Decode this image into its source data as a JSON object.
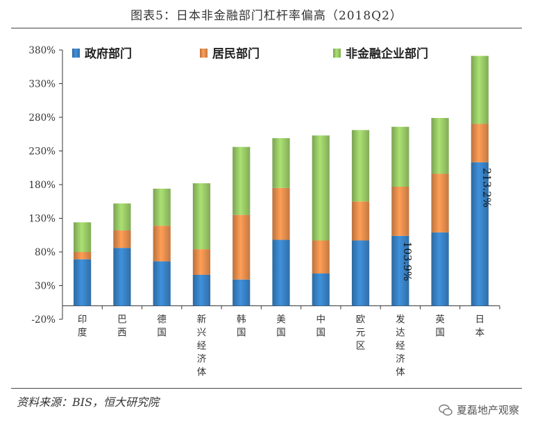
{
  "title": "图表5：日本非金融部门杠杆率偏高（2018Q2）",
  "source": "资料来源：BIS，恒大研究院",
  "watermark": "夏磊地产观察",
  "colors": {
    "gov": "#3a86cc",
    "household": "#ed9250",
    "corp": "#9ed06a"
  },
  "chart_data": {
    "type": "bar",
    "stacked": true,
    "title": "图表5：日本非金融部门杠杆率偏高（2018Q2）",
    "ylim": [
      -20,
      380
    ],
    "yticks": [
      -20,
      30,
      80,
      130,
      180,
      230,
      280,
      330,
      380
    ],
    "ytick_labels": [
      "-20%",
      "30%",
      "80%",
      "130%",
      "180%",
      "230%",
      "280%",
      "330%",
      "380%"
    ],
    "categories": [
      "印度",
      "巴西",
      "德国",
      "新兴经济体",
      "韩国",
      "美国",
      "中国",
      "欧元区",
      "发达经济体",
      "英国",
      "日本"
    ],
    "legend_position": "top",
    "series": [
      {
        "name": "政府部门",
        "key": "gov",
        "values": [
          69,
          86,
          66,
          46,
          39,
          98,
          48,
          97,
          103.9,
          109,
          213.2
        ]
      },
      {
        "name": "居民部门",
        "key": "household",
        "values": [
          11,
          26,
          53,
          38,
          96,
          77,
          49,
          58,
          73,
          87,
          57
        ]
      },
      {
        "name": "非金融企业部门",
        "key": "corp",
        "values": [
          44,
          40,
          55,
          98,
          101,
          74,
          156,
          106,
          89,
          83,
          101
        ]
      }
    ],
    "annotations": [
      {
        "category": "发达经济体",
        "series": "gov",
        "text": "103.9%"
      },
      {
        "category": "日本",
        "series": "gov",
        "text": "213.2%"
      }
    ]
  }
}
